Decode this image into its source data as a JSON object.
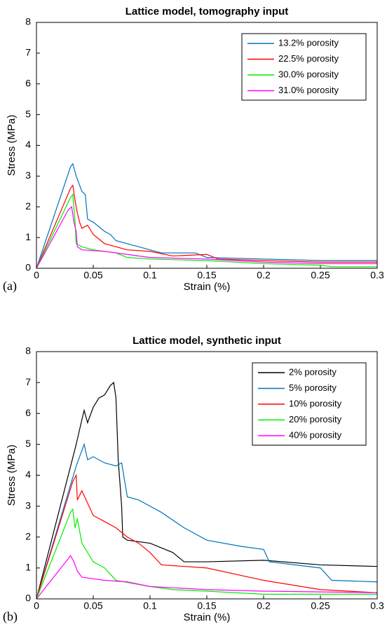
{
  "chart_data": [
    {
      "type": "line",
      "title": "Lattice model, tomography input",
      "xlabel": "Strain (%)",
      "ylabel": "Stress (MPa)",
      "label": "(a)",
      "xlim": [
        0,
        0.3
      ],
      "xticks": [
        0,
        0.05,
        0.1,
        0.15,
        0.2,
        0.25,
        0.3
      ],
      "ylim": [
        0,
        8
      ],
      "yticks": [
        0,
        1,
        2,
        3,
        4,
        5,
        6,
        7,
        8
      ],
      "legend": "upper right",
      "series": [
        {
          "name": "13.2% porosity",
          "color": "#0072bd",
          "x": [
            0,
            0.03,
            0.032,
            0.035,
            0.037,
            0.04,
            0.043,
            0.045,
            0.05,
            0.06,
            0.065,
            0.07,
            0.08,
            0.09,
            0.1,
            0.11,
            0.14,
            0.15,
            0.2,
            0.25,
            0.3
          ],
          "values": [
            0,
            3.3,
            3.4,
            3.0,
            2.8,
            2.5,
            2.4,
            1.6,
            1.5,
            1.2,
            1.1,
            0.9,
            0.8,
            0.7,
            0.6,
            0.5,
            0.5,
            0.35,
            0.3,
            0.25,
            0.25
          ]
        },
        {
          "name": "22.5% porosity",
          "color": "#ff0000",
          "x": [
            0,
            0.03,
            0.032,
            0.034,
            0.036,
            0.038,
            0.04,
            0.045,
            0.05,
            0.06,
            0.07,
            0.08,
            0.1,
            0.12,
            0.15,
            0.16,
            0.2,
            0.25,
            0.3
          ],
          "values": [
            0,
            2.6,
            2.7,
            2.2,
            1.8,
            1.5,
            1.3,
            1.4,
            1.1,
            0.8,
            0.7,
            0.6,
            0.55,
            0.4,
            0.45,
            0.3,
            0.25,
            0.2,
            0.2
          ]
        },
        {
          "name": "30.0% porosity",
          "color": "#00ee00",
          "x": [
            0,
            0.03,
            0.032,
            0.034,
            0.035,
            0.04,
            0.05,
            0.07,
            0.08,
            0.1,
            0.15,
            0.2,
            0.25,
            0.26,
            0.3
          ],
          "values": [
            0,
            2.3,
            2.4,
            1.5,
            0.8,
            0.7,
            0.6,
            0.5,
            0.35,
            0.3,
            0.25,
            0.15,
            0.1,
            0.05,
            0.05
          ]
        },
        {
          "name": "31.0% porosity",
          "color": "#ff00ff",
          "x": [
            0,
            0.028,
            0.031,
            0.033,
            0.035,
            0.036,
            0.04,
            0.06,
            0.08,
            0.1,
            0.15,
            0.2,
            0.25,
            0.3
          ],
          "values": [
            0,
            1.9,
            2.0,
            1.5,
            1.2,
            0.7,
            0.6,
            0.55,
            0.45,
            0.35,
            0.3,
            0.2,
            0.15,
            0.15
          ]
        }
      ]
    },
    {
      "type": "line",
      "title": "Lattice model, synthetic input",
      "xlabel": "Strain (%)",
      "ylabel": "Stress (MPa)",
      "label": "(b)",
      "xlim": [
        0,
        0.3
      ],
      "xticks": [
        0,
        0.05,
        0.1,
        0.15,
        0.2,
        0.25,
        0.3
      ],
      "ylim": [
        0,
        8
      ],
      "yticks": [
        0,
        1,
        2,
        3,
        4,
        5,
        6,
        7,
        8
      ],
      "legend": "upper right",
      "series": [
        {
          "name": "2% porosity",
          "color": "#000000",
          "x": [
            0,
            0.035,
            0.04,
            0.042,
            0.045,
            0.05,
            0.055,
            0.06,
            0.065,
            0.068,
            0.07,
            0.072,
            0.075,
            0.076,
            0.08,
            0.1,
            0.12,
            0.13,
            0.15,
            0.2,
            0.25,
            0.3
          ],
          "values": [
            0,
            5.0,
            5.8,
            6.1,
            5.7,
            6.2,
            6.5,
            6.6,
            6.9,
            7.0,
            6.5,
            4.5,
            3.0,
            2.0,
            1.9,
            1.8,
            1.5,
            1.2,
            1.2,
            1.25,
            1.1,
            1.05
          ]
        },
        {
          "name": "5% porosity",
          "color": "#0072bd",
          "x": [
            0,
            0.035,
            0.04,
            0.042,
            0.045,
            0.05,
            0.06,
            0.07,
            0.075,
            0.08,
            0.09,
            0.1,
            0.11,
            0.13,
            0.15,
            0.18,
            0.2,
            0.205,
            0.25,
            0.26,
            0.3
          ],
          "values": [
            0,
            4.3,
            4.8,
            5.0,
            4.5,
            4.6,
            4.4,
            4.3,
            4.4,
            3.3,
            3.2,
            3.0,
            2.8,
            2.3,
            1.9,
            1.7,
            1.6,
            1.2,
            1.0,
            0.6,
            0.55
          ]
        },
        {
          "name": "10% porosity",
          "color": "#ff0000",
          "x": [
            0,
            0.032,
            0.035,
            0.036,
            0.04,
            0.045,
            0.05,
            0.06,
            0.07,
            0.08,
            0.09,
            0.1,
            0.11,
            0.15,
            0.2,
            0.25,
            0.3
          ],
          "values": [
            0,
            3.8,
            4.0,
            3.2,
            3.5,
            3.1,
            2.7,
            2.5,
            2.3,
            2.0,
            1.8,
            1.5,
            1.1,
            1.0,
            0.6,
            0.3,
            0.2
          ]
        },
        {
          "name": "20% porosity",
          "color": "#00ee00",
          "x": [
            0,
            0.03,
            0.032,
            0.034,
            0.036,
            0.04,
            0.05,
            0.06,
            0.07,
            0.1,
            0.12,
            0.15,
            0.2,
            0.3
          ],
          "values": [
            0,
            2.8,
            2.9,
            2.3,
            2.6,
            1.8,
            1.2,
            1.0,
            0.6,
            0.4,
            0.3,
            0.25,
            0.15,
            0.15
          ]
        },
        {
          "name": "40% porosity",
          "color": "#ff00ff",
          "x": [
            0,
            0.028,
            0.03,
            0.033,
            0.036,
            0.04,
            0.06,
            0.08,
            0.1,
            0.15,
            0.2,
            0.3
          ],
          "values": [
            0,
            1.3,
            1.4,
            1.2,
            0.9,
            0.7,
            0.6,
            0.55,
            0.4,
            0.3,
            0.25,
            0.2
          ]
        }
      ]
    }
  ]
}
